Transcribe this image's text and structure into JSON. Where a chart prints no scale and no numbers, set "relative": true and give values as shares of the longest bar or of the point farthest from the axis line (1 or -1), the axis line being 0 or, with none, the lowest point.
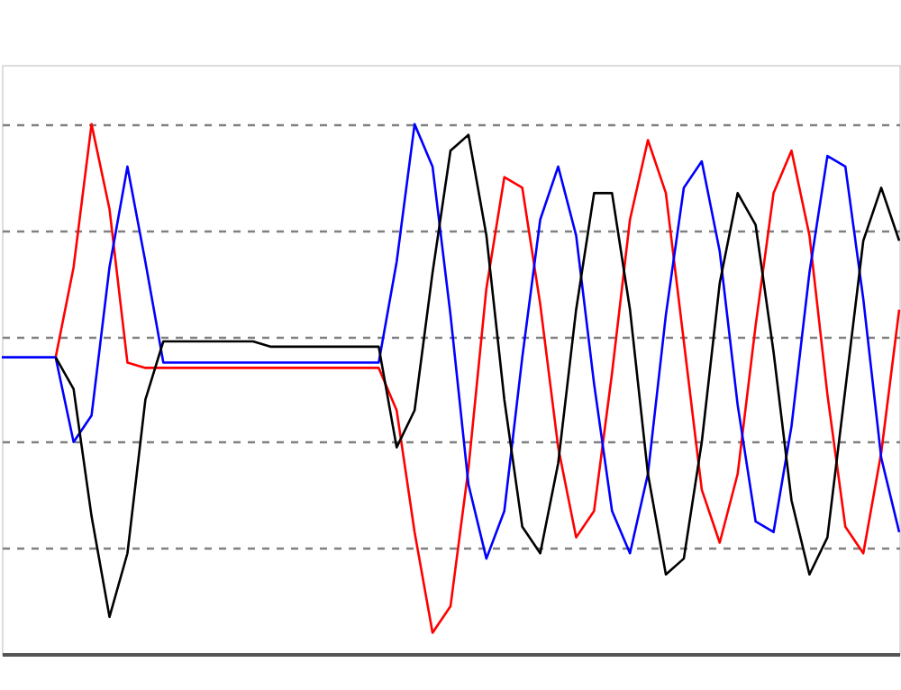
{
  "chart_data": {
    "type": "line",
    "relative": true,
    "grid": "y",
    "legend": false,
    "marker": "none",
    "line_style": "solid",
    "categories": [
      null,
      null,
      null,
      null,
      null,
      null,
      null,
      null,
      null,
      null,
      null,
      null,
      null,
      null,
      null,
      null,
      null,
      null,
      null,
      null,
      null,
      null,
      null,
      null,
      null,
      null,
      null,
      null,
      null,
      null,
      null,
      null,
      null,
      null,
      null,
      null,
      null,
      null,
      null,
      null,
      null,
      null,
      null,
      null,
      null,
      null,
      null,
      null,
      null,
      null,
      null
    ],
    "series": [
      {
        "color": "#ff0000",
        "values": [
          null,
          null,
          null,
          0.56,
          0.73,
          1.0,
          0.84,
          0.55,
          0.54,
          0.54,
          0.54,
          0.54,
          0.54,
          0.54,
          0.54,
          0.54,
          0.54,
          0.54,
          0.54,
          0.54,
          0.54,
          0.54,
          0.46,
          0.23,
          0.04,
          0.09,
          0.35,
          0.69,
          0.9,
          0.88,
          0.66,
          0.39,
          0.22,
          0.27,
          0.53,
          0.82,
          0.97,
          0.87,
          0.59,
          0.31,
          0.21,
          0.34,
          0.62,
          0.87,
          0.95,
          0.79,
          0.49,
          0.24,
          0.19,
          0.38,
          0.65
        ]
      },
      {
        "color": "#0000ff",
        "values": [
          0.56,
          0.56,
          0.56,
          0.56,
          0.4,
          0.45,
          0.73,
          0.92,
          0.74,
          0.55,
          0.55,
          0.55,
          0.55,
          0.55,
          0.55,
          0.55,
          0.55,
          0.55,
          0.55,
          0.55,
          0.55,
          0.55,
          0.74,
          1.0,
          0.92,
          0.64,
          0.32,
          0.18,
          0.27,
          0.56,
          0.82,
          0.92,
          0.79,
          0.51,
          0.27,
          0.19,
          0.34,
          0.64,
          0.88,
          0.93,
          0.76,
          0.47,
          0.25,
          0.23,
          0.43,
          0.72,
          0.94,
          0.92,
          0.67,
          0.37,
          0.23
        ]
      },
      {
        "color": "#000000",
        "values": [
          null,
          null,
          null,
          0.56,
          0.5,
          0.26,
          0.07,
          0.19,
          0.48,
          0.59,
          0.59,
          0.59,
          0.59,
          0.59,
          0.59,
          0.58,
          0.58,
          0.58,
          0.58,
          0.58,
          0.58,
          0.58,
          0.39,
          0.46,
          0.72,
          0.95,
          0.98,
          0.79,
          0.48,
          0.24,
          0.19,
          0.36,
          0.65,
          0.87,
          0.87,
          0.65,
          0.34,
          0.15,
          0.18,
          0.4,
          0.7,
          0.87,
          0.81,
          0.57,
          0.29,
          0.15,
          0.22,
          0.5,
          0.78,
          0.88,
          0.78
        ]
      }
    ]
  }
}
